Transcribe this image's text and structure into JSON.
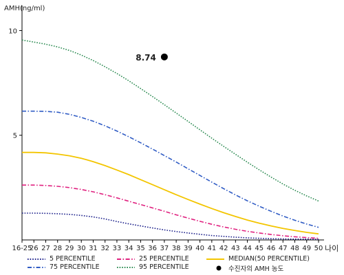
{
  "chart_data": {
    "type": "line",
    "ylabel": "AMH(ng/ml)",
    "xlabel": "나이",
    "x_categories": [
      "16-25",
      "26",
      "27",
      "28",
      "29",
      "30",
      "31",
      "32",
      "33",
      "34",
      "35",
      "36",
      "37",
      "38",
      "39",
      "40",
      "41",
      "42",
      "43",
      "44",
      "45",
      "46",
      "47",
      "48",
      "49",
      "50"
    ],
    "y_ticks": [
      5,
      10
    ],
    "ylim": [
      0,
      11
    ],
    "grid": false,
    "legend_position": "bottom",
    "series": [
      {
        "name": "5 PERCENTILE",
        "color": "#1b1f8a",
        "line_style": "dotted",
        "values": [
          1.28,
          1.28,
          1.27,
          1.25,
          1.22,
          1.17,
          1.1,
          1.0,
          0.88,
          0.77,
          0.67,
          0.57,
          0.48,
          0.4,
          0.33,
          0.27,
          0.21,
          0.17,
          0.13,
          0.1,
          0.08,
          0.06,
          0.05,
          0.04,
          0.04,
          0.03
        ]
      },
      {
        "name": "25 PERCENTILE",
        "color": "#e0207f",
        "line_style": "dashdot",
        "values": [
          2.62,
          2.62,
          2.6,
          2.56,
          2.5,
          2.41,
          2.3,
          2.16,
          2.01,
          1.85,
          1.69,
          1.53,
          1.37,
          1.2,
          1.04,
          0.89,
          0.75,
          0.62,
          0.51,
          0.41,
          0.33,
          0.26,
          0.2,
          0.15,
          0.11,
          0.08
        ]
      },
      {
        "name": "MEDIAN(50 PERCENTILE)",
        "color": "#f3c500",
        "line_style": "solid",
        "values": [
          4.18,
          4.18,
          4.16,
          4.1,
          4.02,
          3.9,
          3.74,
          3.55,
          3.34,
          3.12,
          2.88,
          2.64,
          2.4,
          2.16,
          1.93,
          1.71,
          1.5,
          1.3,
          1.12,
          0.95,
          0.8,
          0.67,
          0.55,
          0.45,
          0.36,
          0.29
        ]
      },
      {
        "name": "75 PERCENTILE",
        "color": "#2f5bc4",
        "line_style": "dashdot",
        "values": [
          6.15,
          6.15,
          6.14,
          6.1,
          6.0,
          5.85,
          5.67,
          5.45,
          5.2,
          4.93,
          4.64,
          4.34,
          4.03,
          3.72,
          3.4,
          3.08,
          2.76,
          2.45,
          2.15,
          1.87,
          1.61,
          1.37,
          1.14,
          0.94,
          0.76,
          0.6
        ]
      },
      {
        "name": "95 PERCENTILE",
        "color": "#2a8a50",
        "line_style": "dotted",
        "values": [
          9.55,
          9.45,
          9.35,
          9.22,
          9.05,
          8.83,
          8.57,
          8.27,
          7.95,
          7.6,
          7.23,
          6.85,
          6.46,
          6.06,
          5.66,
          5.26,
          4.86,
          4.47,
          4.09,
          3.71,
          3.35,
          3.0,
          2.67,
          2.37,
          2.1,
          1.86
        ]
      }
    ],
    "points": [
      {
        "name": "수진자의 AMH 농도",
        "x": "37",
        "y": 8.74,
        "label": "8.74",
        "color": "#000000"
      }
    ]
  },
  "legend_rows": [
    [
      {
        "label": "5 PERCENTILE",
        "series": 0
      },
      {
        "label": "25 PERCENTILE",
        "series": 1
      },
      {
        "label": "MEDIAN(50 PERCENTILE)",
        "series": 2
      }
    ],
    [
      {
        "label": "75 PERCENTILE",
        "series": 3
      },
      {
        "label": "95 PERCENTILE",
        "series": 4
      },
      {
        "label": "수진자의 AMH 농도",
        "point": 0
      }
    ]
  ]
}
